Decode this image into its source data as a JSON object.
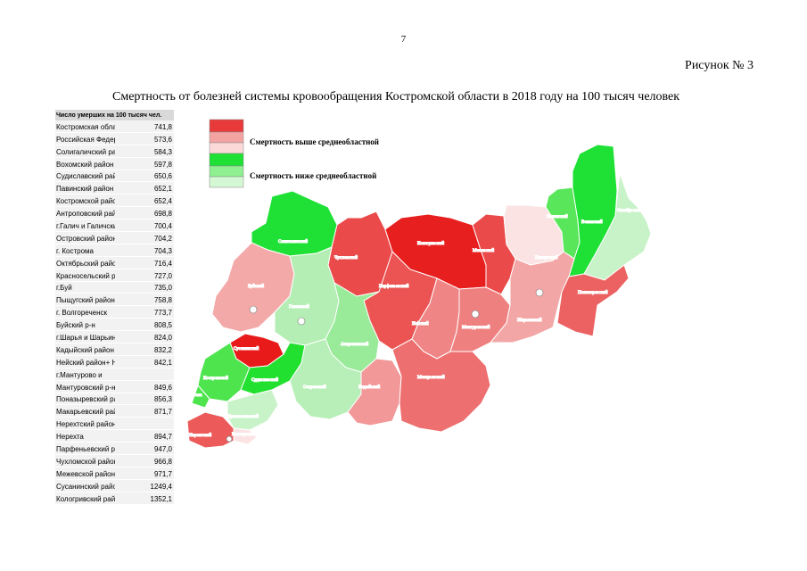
{
  "page": {
    "number": "7",
    "figure_label": "Рисунок № 3",
    "title": "Смертность от болезней системы кровообращения Костромской области в 2018 году на 100 тысяч человек"
  },
  "table": {
    "header": "Число умерших на 100 тысяч чел.",
    "rows": [
      {
        "name": "Костромская область",
        "value": "741,8"
      },
      {
        "name": "Российская Федерация",
        "value": "573,6"
      },
      {
        "name": "Солигаличский район",
        "value": "584,3"
      },
      {
        "name": "Вохомский район",
        "value": "597,8"
      },
      {
        "name": "Судиславский район",
        "value": "650,6"
      },
      {
        "name": "Павинский район",
        "value": "652,1"
      },
      {
        "name": "Костромской район",
        "value": "652,4"
      },
      {
        "name": "Антроповский район",
        "value": "698,8"
      },
      {
        "name": "г.Галич и Галичский р-н",
        "value": "700,4"
      },
      {
        "name": "Островский район",
        "value": "704,2"
      },
      {
        "name": "г. Кострома",
        "value": "704,3"
      },
      {
        "name": "Октябрьский район",
        "value": "716,4"
      },
      {
        "name": "Красносельский район",
        "value": "727,0"
      },
      {
        "name": "г.Буй",
        "value": "735,0"
      },
      {
        "name": "Пыщугский район",
        "value": "758,8"
      },
      {
        "name": "г. Волгореченск",
        "value": "773,7"
      },
      {
        "name": "Буйский р-н",
        "value": "808,5"
      },
      {
        "name": "г.Шарья и Шарьинский р-н",
        "value": "824,0"
      },
      {
        "name": "Кадыйский район",
        "value": "832,2"
      },
      {
        "name": "Нейский район+ Нея",
        "value": "842,1"
      },
      {
        "name": "г.Мантурово и",
        "value": ""
      },
      {
        "name": "Мантуровский р-н",
        "value": "849,6"
      },
      {
        "name": "Поназыревский район",
        "value": "856,3"
      },
      {
        "name": "Макарьевский район",
        "value": "871,7"
      },
      {
        "name": "Нерехтский район +",
        "value": ""
      },
      {
        "name": "Нерехта",
        "value": "894,7"
      },
      {
        "name": "Парфеньевский район",
        "value": "947,0"
      },
      {
        "name": "Чухломской район",
        "value": "966,8"
      },
      {
        "name": "Межевской район",
        "value": "971,7"
      },
      {
        "name": "Сусанинский район",
        "value": "1249,4"
      },
      {
        "name": "Кологривский район",
        "value": "1352,1"
      }
    ]
  },
  "legend": {
    "above": "Смертность выше среднеобластной",
    "below": "Смертность ниже среднеобластной",
    "colors_above": [
      "#e83a3a",
      "#f4a3a3",
      "#fbd9d9"
    ],
    "colors_below": [
      "#1fe035",
      "#8ff08f",
      "#d4f7d4"
    ]
  },
  "map": {
    "districts": [
      {
        "name": "Солигаличский",
        "color": "#1fe035"
      },
      {
        "name": "Чухломской",
        "color": "#ea4a4a"
      },
      {
        "name": "Кологривский",
        "color": "#e81f1f"
      },
      {
        "name": "Межевской",
        "color": "#ea4a4a"
      },
      {
        "name": "Пыщугский",
        "color": "#fbe3e3"
      },
      {
        "name": "Павинский",
        "color": "#5ae65a"
      },
      {
        "name": "Вохомский",
        "color": "#1fe035"
      },
      {
        "name": "Октябрьский",
        "color": "#c8f2c8"
      },
      {
        "name": "Буйский",
        "color": "#f4a9a9"
      },
      {
        "name": "Галичский",
        "color": "#b4eeb4"
      },
      {
        "name": "Парфеньевский",
        "color": "#ec5454"
      },
      {
        "name": "Нейский",
        "color": "#ef8585"
      },
      {
        "name": "Мантуровский",
        "color": "#ef8080"
      },
      {
        "name": "Шарьинский",
        "color": "#f3a6a6"
      },
      {
        "name": "Поназыревский",
        "color": "#ec6262"
      },
      {
        "name": "Антроповский",
        "color": "#99ea99"
      },
      {
        "name": "Сусанинский",
        "color": "#e81a1a"
      },
      {
        "name": "Костромской",
        "color": "#4ee44e"
      },
      {
        "name": "Судиславский",
        "color": "#22e02f"
      },
      {
        "name": "Островский",
        "color": "#b8efb8"
      },
      {
        "name": "Кадыйский",
        "color": "#f29898"
      },
      {
        "name": "Макарьевский",
        "color": "#ee6f6f"
      },
      {
        "name": "Кострома",
        "color": "#4ee44e"
      },
      {
        "name": "Красносельский",
        "color": "#c8f2c8"
      },
      {
        "name": "Волгореченск",
        "color": "#fbe3e3"
      },
      {
        "name": "Нерехтский",
        "color": "#ec5a5a"
      }
    ]
  }
}
